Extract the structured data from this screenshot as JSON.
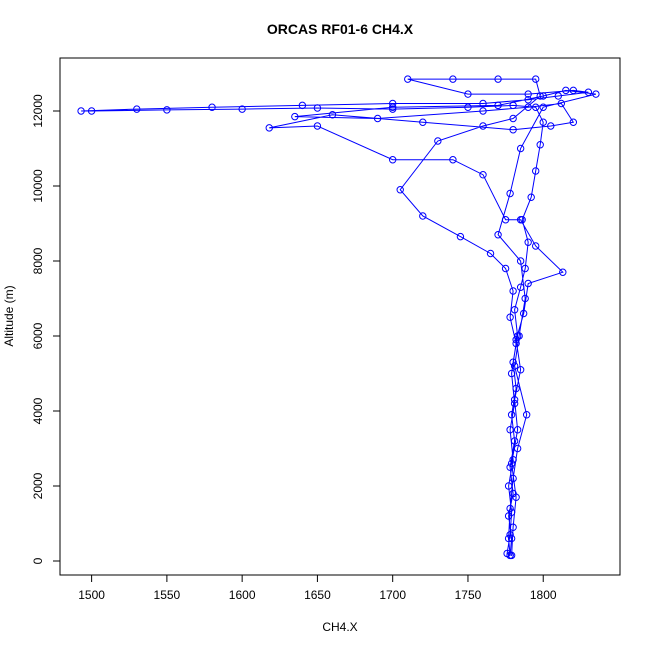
{
  "chart_data": {
    "type": "line",
    "title": "ORCAS RF01-6 CH4.X",
    "x_label": "CH4.X",
    "y_label": "Altitude (m)",
    "color": "#0000ff",
    "markers": true,
    "xlim": [
      1479,
      1851
    ],
    "ylim": [
      -373,
      13413
    ],
    "xticks": [
      1500,
      1550,
      1600,
      1650,
      1700,
      1750,
      1800
    ],
    "yticks": [
      0,
      2000,
      4000,
      6000,
      8000,
      10000,
      12000
    ],
    "x": [
      1778,
      1779,
      1777,
      1780,
      1778,
      1781,
      1779,
      1782,
      1780,
      1783,
      1781,
      1785,
      1788,
      1790,
      1786,
      1792,
      1795,
      1798,
      1800,
      1795,
      1780,
      1750,
      1700,
      1650,
      1600,
      1550,
      1500,
      1493,
      1530,
      1580,
      1640,
      1700,
      1760,
      1790,
      1810,
      1830,
      1820,
      1790,
      1750,
      1710,
      1740,
      1770,
      1795,
      1798,
      1780,
      1760,
      1730,
      1705,
      1720,
      1745,
      1765,
      1775,
      1780,
      1778,
      1782,
      1779,
      1781,
      1778,
      1780,
      1777,
      1779,
      1778,
      1776,
      1779,
      1780,
      1782,
      1779,
      1783,
      1781,
      1785,
      1782,
      1787,
      1790,
      1813,
      1795,
      1785,
      1775,
      1760,
      1740,
      1700,
      1650,
      1618,
      1660,
      1720,
      1780,
      1805,
      1820,
      1812,
      1790,
      1760,
      1690,
      1635,
      1700,
      1770,
      1800,
      1815,
      1835,
      1800,
      1785,
      1778,
      1770,
      1785,
      1788,
      1784,
      1781,
      1789,
      1783,
      1780,
      1778,
      1777,
      1778
    ],
    "values": [
      150,
      600,
      1200,
      1800,
      2500,
      3200,
      3900,
      4600,
      5300,
      6000,
      6700,
      7300,
      7800,
      8500,
      9100,
      9700,
      10400,
      11100,
      11700,
      12100,
      12150,
      12100,
      12050,
      12080,
      12050,
      12030,
      12000,
      12000,
      12050,
      12100,
      12150,
      12200,
      12200,
      12300,
      12400,
      12500,
      12550,
      12450,
      12450,
      12850,
      12850,
      12850,
      12850,
      12400,
      11800,
      11600,
      11200,
      9900,
      9200,
      8650,
      8200,
      7800,
      7200,
      6500,
      5800,
      5000,
      4200,
      3500,
      2700,
      2000,
      1300,
      700,
      200,
      150,
      900,
      1700,
      2600,
      3500,
      4300,
      5100,
      5900,
      6600,
      7400,
      7700,
      8400,
      9100,
      9100,
      10300,
      10700,
      10700,
      11600,
      11550,
      11900,
      11700,
      11500,
      11600,
      11700,
      12200,
      12100,
      12000,
      11800,
      11850,
      12100,
      12150,
      12400,
      12550,
      12450,
      12100,
      11000,
      9800,
      8700,
      8000,
      7000,
      6000,
      5200,
      3900,
      3000,
      2200,
      1400,
      600,
      150
    ]
  }
}
